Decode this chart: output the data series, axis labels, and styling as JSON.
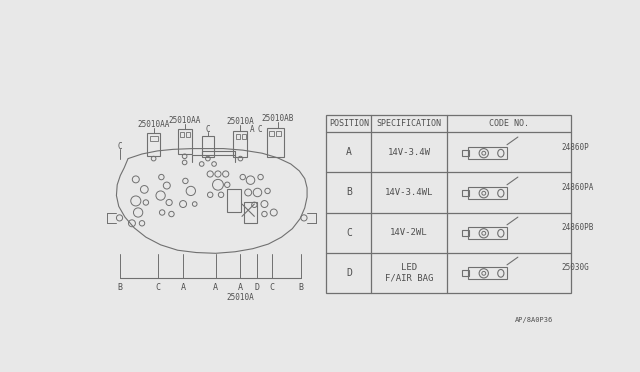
{
  "bg_color": "#e8e8e8",
  "line_color": "#707070",
  "text_color": "#505050",
  "footer_text": "AP/8A0P36",
  "table": {
    "rows": [
      {
        "pos": "A",
        "spec": "14V-3.4W",
        "code": "24860P"
      },
      {
        "pos": "B",
        "spec": "14V-3.4WL",
        "code": "24860PA"
      },
      {
        "pos": "C",
        "spec": "14V-2WL",
        "code": "24860PB"
      },
      {
        "pos": "D",
        "spec": "LED\nF/AIR BAG",
        "code": "25030G"
      }
    ]
  }
}
